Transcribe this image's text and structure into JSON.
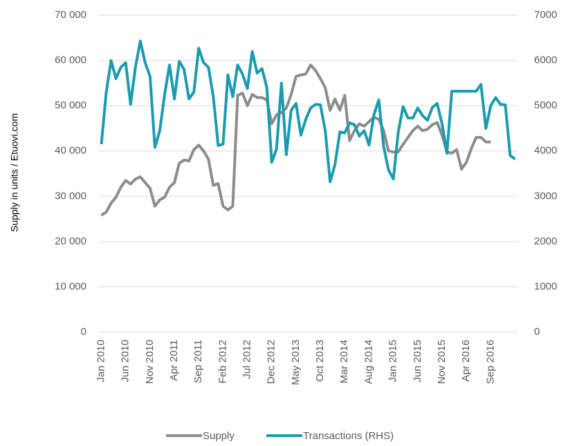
{
  "chart_data": {
    "type": "line",
    "y_label": "Supply in units / Etuovi.com",
    "categories": [
      "Jan 2010",
      null,
      null,
      null,
      null,
      "Jun 2010",
      null,
      null,
      null,
      null,
      "Nov 2010",
      null,
      null,
      null,
      null,
      "Apr 2011",
      null,
      null,
      null,
      null,
      "Sep 2011",
      null,
      null,
      null,
      null,
      "Feb 2012",
      null,
      null,
      null,
      null,
      "Jul 2012",
      null,
      null,
      null,
      null,
      "Dec 2012",
      null,
      null,
      null,
      null,
      "May 2013",
      null,
      null,
      null,
      null,
      "Oct 2013",
      null,
      null,
      null,
      null,
      "Mar 2014",
      null,
      null,
      null,
      null,
      "Aug 2014",
      null,
      null,
      null,
      null,
      "Jan 2015",
      null,
      null,
      null,
      null,
      "Jun 2015",
      null,
      null,
      null,
      null,
      "Nov 2015",
      null,
      null,
      null,
      null,
      "Apr 2016",
      null,
      null,
      null,
      null,
      "Sep 2016",
      null,
      null,
      null,
      null,
      null
    ],
    "series": [
      {
        "name": "Supply",
        "color": "#8c8c8c",
        "axis": "y",
        "values": [
          25800,
          26500,
          28500,
          29800,
          32000,
          33500,
          32700,
          33800,
          34300,
          33000,
          31800,
          27800,
          29200,
          29800,
          32000,
          33000,
          37300,
          38000,
          37800,
          40300,
          41300,
          40000,
          38200,
          32400,
          32800,
          27800,
          27000,
          27800,
          52300,
          52800,
          50000,
          52500,
          51800,
          51800,
          51300,
          46000,
          48000,
          48500,
          49500,
          52500,
          56500,
          56800,
          57000,
          59000,
          57800,
          56000,
          54000,
          49000,
          51500,
          49000,
          52300,
          42300,
          44500,
          46000,
          45500,
          46500,
          47500,
          47000,
          44500,
          40000,
          39800,
          39800,
          41500,
          43000,
          44500,
          45500,
          44500,
          44800,
          45800,
          46300,
          43500,
          39800,
          39500,
          40300,
          36000,
          37500,
          40500,
          43000,
          43000,
          42000,
          42000,
          null,
          null,
          null,
          null,
          null
        ]
      },
      {
        "name": "Transactions (RHS)",
        "color": "#1b9bb0",
        "axis": "y2",
        "values": [
          4150,
          5300,
          6000,
          5600,
          5850,
          5950,
          5030,
          5850,
          6430,
          5950,
          5650,
          4080,
          4450,
          5250,
          5900,
          5150,
          5980,
          5800,
          5150,
          5300,
          6270,
          5950,
          5850,
          5200,
          4120,
          4150,
          5680,
          5200,
          5900,
          5700,
          5380,
          6200,
          5720,
          5820,
          5400,
          3750,
          4050,
          5500,
          3920,
          4900,
          5050,
          4350,
          4700,
          4950,
          5030,
          5020,
          4450,
          3320,
          3700,
          4420,
          4400,
          4620,
          4580,
          4330,
          4450,
          4130,
          4800,
          5130,
          4100,
          3580,
          3380,
          4420,
          4980,
          4730,
          4730,
          4950,
          4780,
          4680,
          4960,
          5050,
          4600,
          3950,
          5320,
          5320,
          5320,
          5320,
          5320,
          5320,
          5470,
          4500,
          5000,
          5180,
          5030,
          5020,
          3900,
          3820
        ]
      }
    ],
    "ylim": [
      0,
      70000
    ],
    "yticks": [
      {
        "value": 0,
        "label": "0"
      },
      {
        "value": 10000,
        "label": "10 000"
      },
      {
        "value": 20000,
        "label": "20 000"
      },
      {
        "value": 30000,
        "label": "30 000"
      },
      {
        "value": 40000,
        "label": "40 000"
      },
      {
        "value": 50000,
        "label": "50 000"
      },
      {
        "value": 60000,
        "label": "60 000"
      },
      {
        "value": 70000,
        "label": "70 000"
      }
    ],
    "y2lim": [
      0,
      7000
    ],
    "y2ticks": [
      0,
      1000,
      2000,
      3000,
      4000,
      5000,
      6000,
      7000
    ],
    "grid": true,
    "legend": "bottom"
  }
}
